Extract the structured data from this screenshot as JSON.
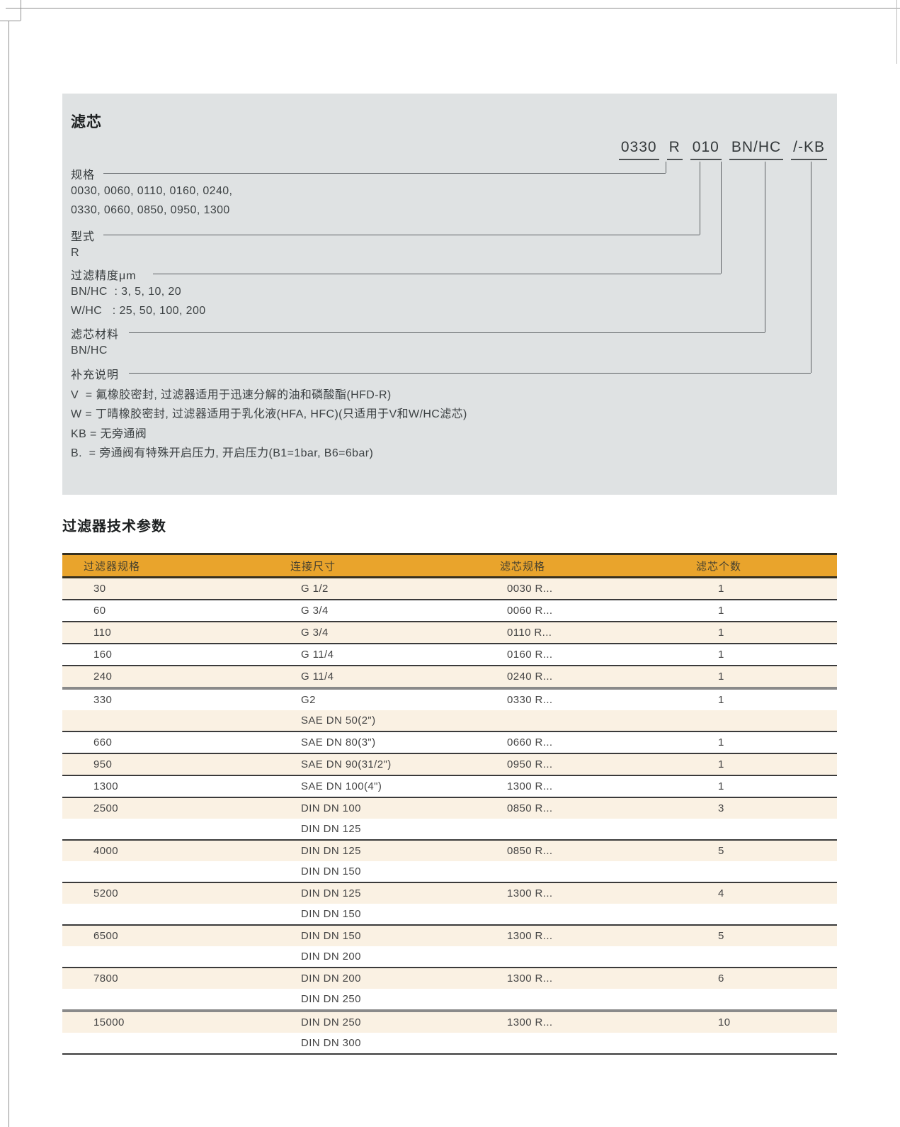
{
  "colors": {
    "accent": "#E9A42C",
    "cream": "#FAF1E3",
    "panel": "#DFE2E3"
  },
  "panel": {
    "title": "滤芯",
    "code_parts": [
      "0330",
      "R",
      "010",
      "BN/HC",
      "/-KB"
    ],
    "sections": [
      {
        "label": "规格",
        "lines": [
          "0030, 0060, 0110, 0160, 0240,",
          "0330, 0660, 0850, 0950, 1300"
        ]
      },
      {
        "label": "型式",
        "lines": [
          "R"
        ]
      },
      {
        "label": "过滤精度μm",
        "lines": [
          "BN/HC  : 3, 5, 10, 20",
          "W/HC   : 25, 50, 100, 200"
        ]
      },
      {
        "label": "滤芯材料",
        "lines": [
          "BN/HC"
        ]
      },
      {
        "label": "补充说明",
        "lines": [
          "V  = 氟橡胶密封, 过滤器适用于迅速分解的油和磷酸酯(HFD-R)",
          "W = 丁晴橡胶密封, 过滤器适用于乳化液(HFA, HFC)(只适用于V和W/HC滤芯)",
          "KB = 无旁通阀",
          "B.  = 旁通阀有特殊开启压力, 开启压力(B1=1bar, B6=6bar)"
        ]
      }
    ]
  },
  "table": {
    "title": "过滤器技术参数",
    "columns": [
      "过滤器规格",
      "连接尺寸",
      "滤芯规格",
      "滤芯个数"
    ],
    "rows": [
      {
        "cells": [
          "30",
          "G 1/2",
          "0030 R...",
          "1"
        ],
        "divider": "thin"
      },
      {
        "cells": [
          "60",
          "G 3/4",
          "0060 R...",
          "1"
        ],
        "divider": "thin"
      },
      {
        "cells": [
          "110",
          "G 3/4",
          "0110 R...",
          "1"
        ],
        "divider": "thin"
      },
      {
        "cells": [
          "160",
          "G 11/4",
          "0160 R...",
          "1"
        ],
        "divider": "thin"
      },
      {
        "cells": [
          "240",
          "G 11/4",
          "0240 R...",
          "1"
        ],
        "divider": "thick"
      },
      {
        "cells": [
          "330",
          "G2",
          "0330 R...",
          "1"
        ],
        "divider": "none"
      },
      {
        "cells": [
          "",
          "SAE DN 50(2\")",
          "",
          ""
        ],
        "divider": "thin"
      },
      {
        "cells": [
          "660",
          "SAE DN 80(3\")",
          "0660 R...",
          "1"
        ],
        "divider": "thin"
      },
      {
        "cells": [
          "950",
          "SAE DN 90(31/2\")",
          "0950 R...",
          "1"
        ],
        "divider": "thin"
      },
      {
        "cells": [
          "1300",
          "SAE DN 100(4\")",
          "1300 R...",
          "1"
        ],
        "divider": "thin"
      },
      {
        "cells": [
          "2500",
          "DIN DN 100",
          "0850 R...",
          "3"
        ],
        "divider": "none"
      },
      {
        "cells": [
          "",
          "DIN DN 125",
          "",
          ""
        ],
        "divider": "thin"
      },
      {
        "cells": [
          "4000",
          "DIN DN 125",
          "0850 R...",
          "5"
        ],
        "divider": "none"
      },
      {
        "cells": [
          "",
          "DIN DN 150",
          "",
          ""
        ],
        "divider": "thin"
      },
      {
        "cells": [
          "5200",
          "DIN DN 125",
          "1300 R...",
          "4"
        ],
        "divider": "none"
      },
      {
        "cells": [
          "",
          "DIN DN 150",
          "",
          ""
        ],
        "divider": "thin"
      },
      {
        "cells": [
          "6500",
          "DIN DN 150",
          "1300 R...",
          "5"
        ],
        "divider": "none"
      },
      {
        "cells": [
          "",
          "DIN DN 200",
          "",
          ""
        ],
        "divider": "thin"
      },
      {
        "cells": [
          "7800",
          "DIN DN 200",
          "1300 R...",
          "6"
        ],
        "divider": "none"
      },
      {
        "cells": [
          "",
          "DIN DN 250",
          "",
          ""
        ],
        "divider": "thick"
      },
      {
        "cells": [
          "15000",
          "DIN DN 250",
          "1300 R...",
          "10"
        ],
        "divider": "none"
      },
      {
        "cells": [
          "",
          "DIN DN 300",
          "",
          ""
        ],
        "divider": "thin"
      }
    ]
  }
}
